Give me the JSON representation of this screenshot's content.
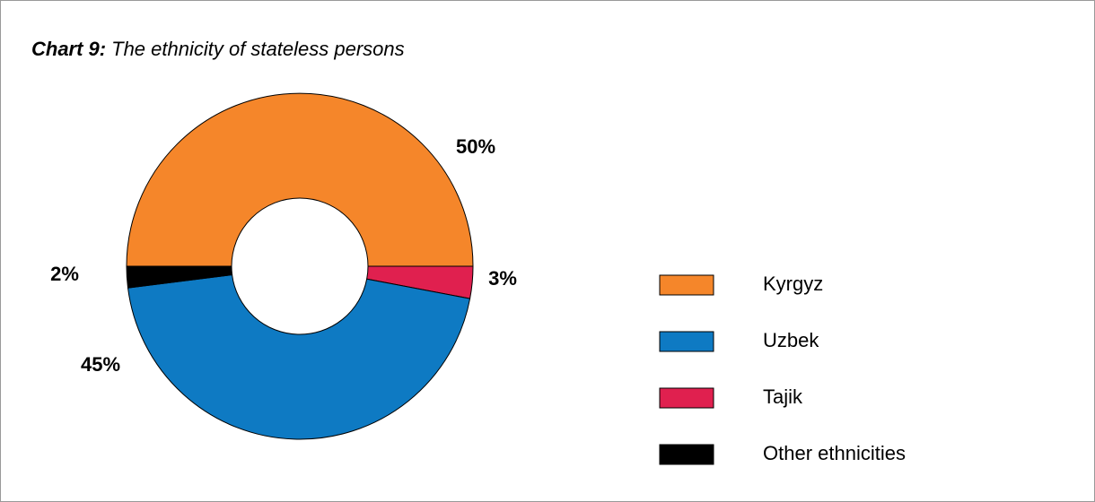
{
  "chart_data": {
    "type": "donut",
    "title_label": "Chart 9:",
    "title": "The ethnicity of stateless persons",
    "categories": [
      "Kyrgyz",
      "Uzbek",
      "Tajik",
      "Other ethnicities"
    ],
    "values": [
      50,
      45,
      3,
      2
    ],
    "value_labels": [
      "50%",
      "45%",
      "3%",
      "2%"
    ],
    "colors": [
      "#f5862a",
      "#0e7ac3",
      "#e0204f",
      "#000000"
    ],
    "legend": "right"
  }
}
